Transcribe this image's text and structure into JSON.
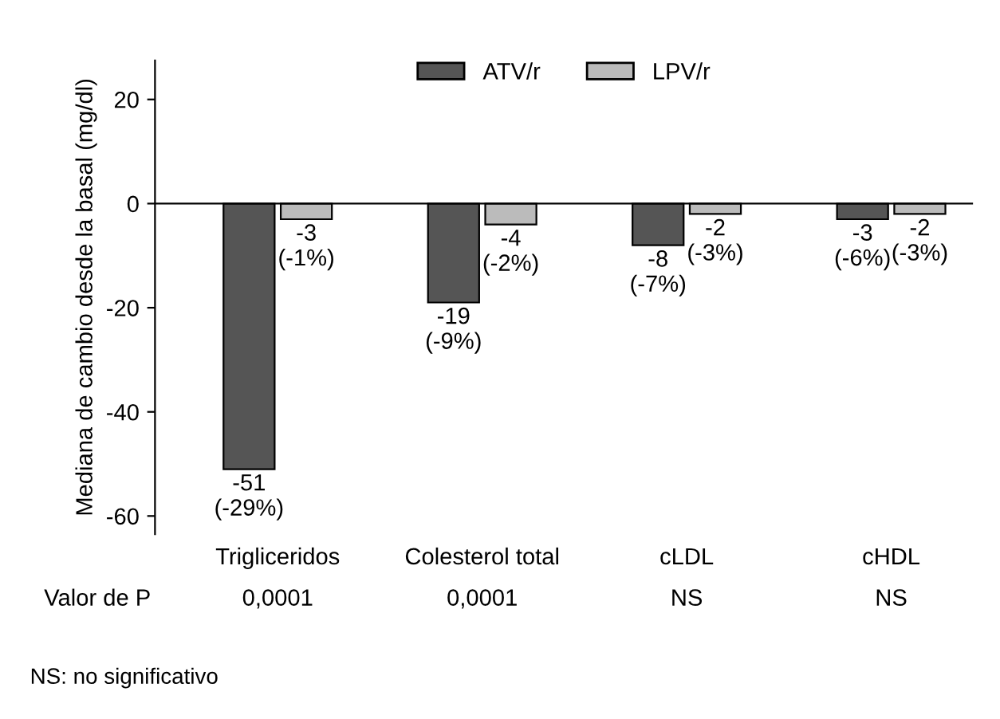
{
  "chart_data": {
    "type": "bar",
    "ylabel": "Mediana de cambio desde la basal (mg/dl)",
    "categories": [
      "Trigliceridos",
      "Colesterol total",
      "cLDL",
      "cHDL"
    ],
    "series": [
      {
        "name": "ATV/r",
        "color": "#555555",
        "values": [
          -51,
          -19,
          -8,
          -3
        ],
        "value_labels": [
          "-51\n(-29%)",
          "-19\n(-9%)",
          "-8\n(-7%)",
          "-3\n(-6%)"
        ]
      },
      {
        "name": "LPV/r",
        "color": "#bbbbbb",
        "values": [
          -3,
          -4,
          -2,
          -2
        ],
        "value_labels": [
          "-3\n(-1%)",
          "-4\n(-2%)",
          "-2\n(-3%)",
          "-2\n(-3%)"
        ]
      }
    ],
    "ylim": [
      -63.5,
      27.5
    ],
    "yticks": [
      -60,
      -40,
      -20,
      0,
      20
    ],
    "ref_lines": [
      {
        "axis": "y",
        "value": 0,
        "color": "#000000"
      }
    ],
    "annotations": [
      "Valor de P",
      "0,0001",
      "0,0001",
      "NS",
      "NS",
      "NS: no significativo"
    ],
    "legend": "top",
    "grid": false
  }
}
